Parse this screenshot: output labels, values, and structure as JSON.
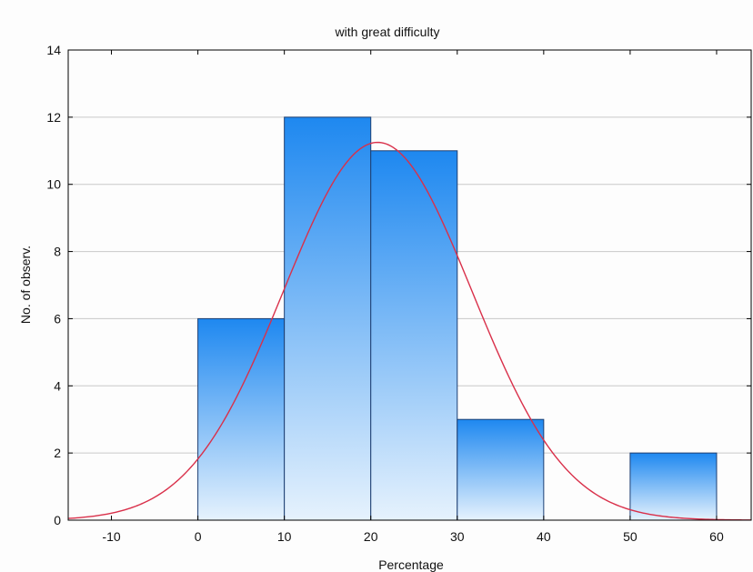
{
  "chart_data": {
    "type": "bar",
    "title": "with great difficulty",
    "xlabel": "Percentage",
    "ylabel": "No. of observ.",
    "xlim": [
      -15,
      64
    ],
    "ylim": [
      0,
      14
    ],
    "x_ticks": [
      -10,
      0,
      10,
      20,
      30,
      40,
      50,
      60
    ],
    "y_ticks": [
      0,
      2,
      4,
      6,
      8,
      10,
      12,
      14
    ],
    "grid": true,
    "bins": [
      {
        "from": 0,
        "to": 10,
        "value": 6
      },
      {
        "from": 10,
        "to": 20,
        "value": 12
      },
      {
        "from": 20,
        "to": 30,
        "value": 11
      },
      {
        "from": 30,
        "to": 40,
        "value": 3
      },
      {
        "from": 40,
        "to": 50,
        "value": 0
      },
      {
        "from": 50,
        "to": 60,
        "value": 2
      }
    ],
    "fit_curve": {
      "type": "normal",
      "mean": 20.8,
      "sd": 10.9,
      "peak": 11.25,
      "color": "#d9304a"
    },
    "colors": {
      "bar_top": "#1e88f0",
      "bar_bottom": "#e6f2fd",
      "bar_edge": "#1d3f73",
      "grid": "#c8c8c8"
    }
  }
}
